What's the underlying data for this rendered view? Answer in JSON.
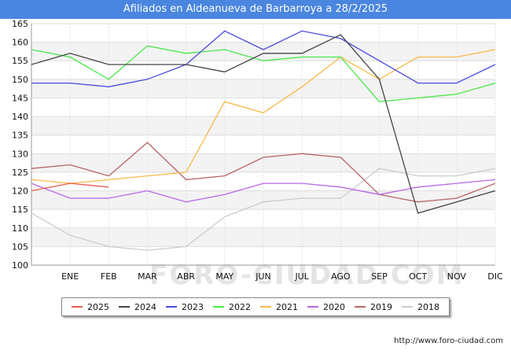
{
  "title": "Afiliados en Aldeanueva de Barbarroya a 28/2/2025",
  "watermark": "FORO-CIUDAD.COM",
  "source": "http://www.foro-ciudad.com",
  "chart_data": {
    "type": "line",
    "categories": [
      "",
      "ENE",
      "FEB",
      "MAR",
      "ABR",
      "MAY",
      "JUN",
      "JUL",
      "AGO",
      "SEP",
      "OCT",
      "NOV",
      "DIC"
    ],
    "ylim": [
      100,
      165
    ],
    "yticks": [
      100,
      105,
      110,
      115,
      120,
      125,
      130,
      135,
      140,
      145,
      150,
      155,
      160,
      165
    ],
    "series": [
      {
        "name": "2025",
        "color": "#e8584f",
        "values": [
          120,
          122,
          121,
          null,
          null,
          null,
          null,
          null,
          null,
          null,
          null,
          null,
          null
        ]
      },
      {
        "name": "2024",
        "color": "#444444",
        "values": [
          154,
          157,
          154,
          154,
          154,
          152,
          157,
          157,
          162,
          150,
          114,
          117,
          120
        ]
      },
      {
        "name": "2023",
        "color": "#4a4ae0",
        "values": [
          149,
          149,
          148,
          150,
          154,
          163,
          158,
          163,
          161,
          155,
          149,
          149,
          154
        ]
      },
      {
        "name": "2022",
        "color": "#48e848",
        "values": [
          158,
          156,
          150,
          159,
          157,
          158,
          155,
          156,
          156,
          144,
          145,
          146,
          149
        ]
      },
      {
        "name": "2021",
        "color": "#f8b84a",
        "values": [
          123,
          122,
          123,
          124,
          125,
          144,
          141,
          148,
          156,
          150,
          156,
          156,
          158
        ]
      },
      {
        "name": "2020",
        "color": "#b866e8",
        "values": [
          122,
          118,
          118,
          120,
          117,
          119,
          122,
          122,
          121,
          119,
          121,
          122,
          123
        ]
      },
      {
        "name": "2019",
        "color": "#b86464",
        "values": [
          126,
          127,
          124,
          133,
          123,
          124,
          129,
          130,
          129,
          119,
          117,
          118,
          122
        ]
      },
      {
        "name": "2018",
        "color": "#cccccc",
        "values": [
          114,
          108,
          105,
          104,
          105,
          113,
          117,
          118,
          118,
          126,
          124,
          124,
          126
        ]
      }
    ]
  }
}
